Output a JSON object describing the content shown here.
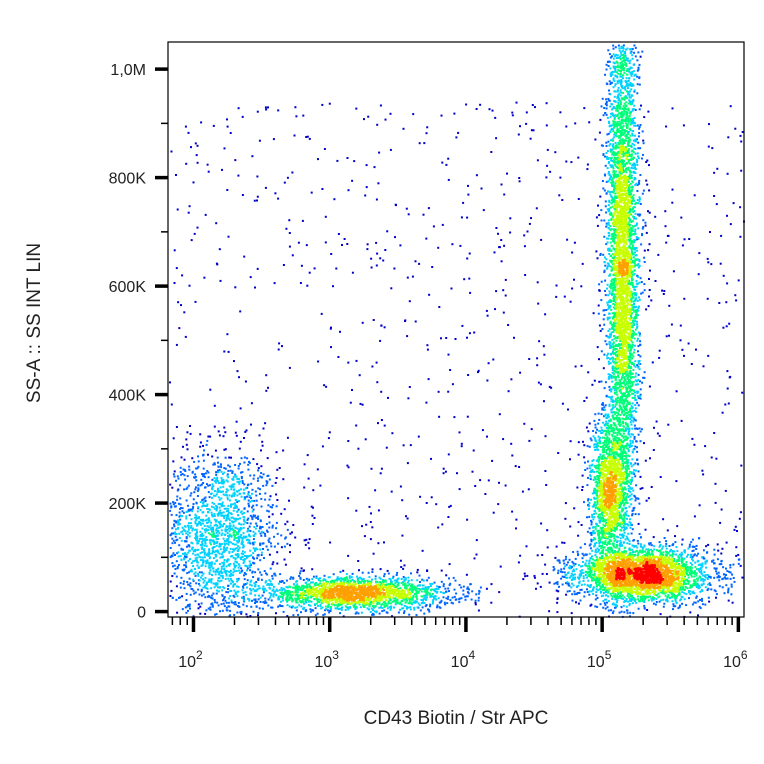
{
  "chart_data": {
    "type": "scatter",
    "title": "",
    "xlabel": "CD43 Biotin / Str APC",
    "ylabel": "SS-A :: SS INT LIN",
    "x_scale": "log",
    "xlim": [
      65,
      1100000
    ],
    "ylim": [
      -10000,
      1050000
    ],
    "x_ticks": [
      {
        "value": 100,
        "base": "10",
        "exp": "2"
      },
      {
        "value": 1000,
        "base": "10",
        "exp": "3"
      },
      {
        "value": 10000,
        "base": "10",
        "exp": "4"
      },
      {
        "value": 100000,
        "base": "10",
        "exp": "5"
      },
      {
        "value": 1000000,
        "base": "10",
        "exp": "6"
      }
    ],
    "y_ticks": [
      {
        "value": 0,
        "label": "0"
      },
      {
        "value": 200000,
        "label": "200K"
      },
      {
        "value": 400000,
        "label": "400K"
      },
      {
        "value": 600000,
        "label": "600K"
      },
      {
        "value": 800000,
        "label": "800K"
      },
      {
        "value": 1000000,
        "label": "1,0M"
      }
    ],
    "grid": false,
    "density_colormap": [
      "#0000c8",
      "#0064ff",
      "#00d2ff",
      "#00ff78",
      "#c8ff00",
      "#ffa000",
      "#ff0000"
    ],
    "populations": [
      {
        "x_center": 150,
        "y_center": 140000,
        "x_spread_log": 0.22,
        "y_spread": 80000,
        "relative_size": 0.12
      },
      {
        "x_center": 1500,
        "y_center": 35000,
        "x_spread_log": 0.35,
        "y_spread": 15000,
        "relative_size": 0.14
      },
      {
        "x_center": 140000,
        "y_center": 650000,
        "x_spread_log": 0.06,
        "y_spread": 250000,
        "relative_size": 0.3
      },
      {
        "x_center": 110000,
        "y_center": 220000,
        "x_spread_log": 0.07,
        "y_spread": 70000,
        "relative_size": 0.1
      },
      {
        "x_center": 200000,
        "y_center": 70000,
        "x_spread_log": 0.25,
        "y_spread": 25000,
        "relative_size": 0.2
      }
    ]
  }
}
